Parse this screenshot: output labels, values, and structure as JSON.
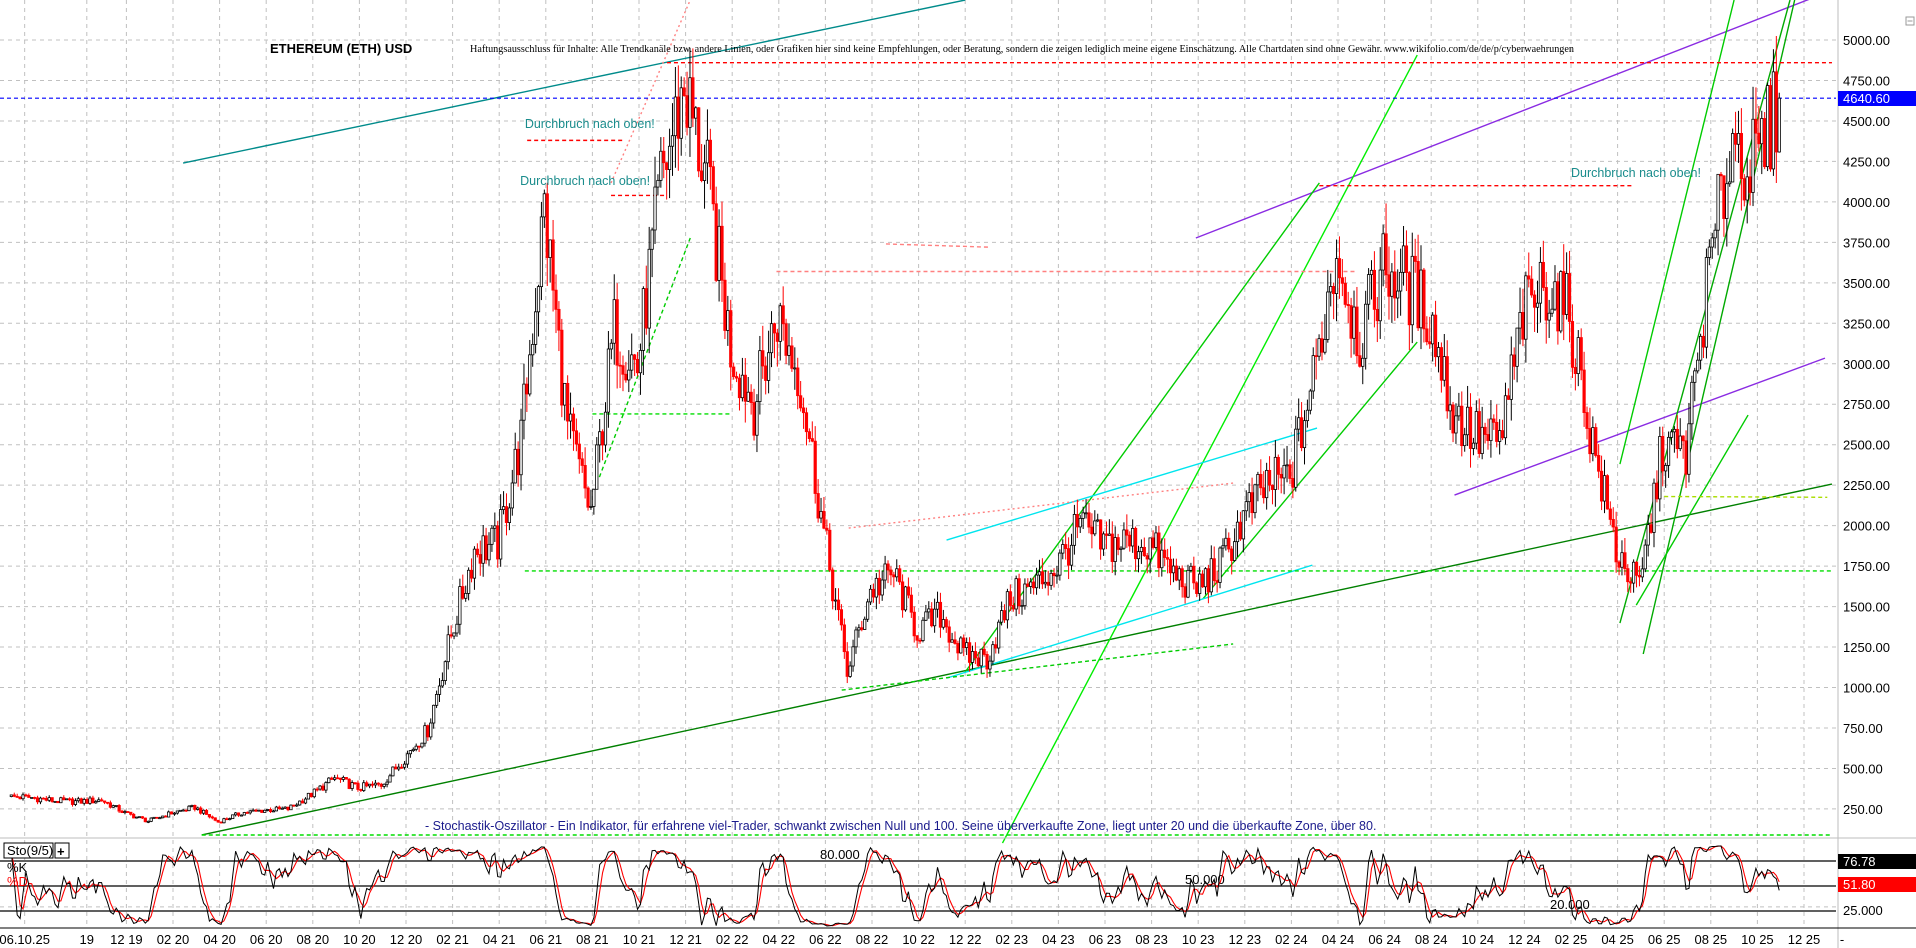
{
  "chart_data": {
    "type": "candlestick",
    "title": "ETHEREUM (ETH) USD",
    "disclaimer": "Haftungsausschluss für Inhalte: Alle Trendkanäle bzw. andere Linien, oder Grafiken hier sind keine Empfehlungen, oder Beratung, sondern die zeigen lediglich meine eigene Einschätzung. Alle Chartdaten sind ohne Gewähr.  www.wikifolio.com/de/de/p/cyberwaehrungen",
    "last_price": 4640.6,
    "last_price_label": "4640.60",
    "ylim": [
      80,
      5250
    ],
    "y_ticks": [
      "250.00",
      "500.00",
      "750.00",
      "1000.00",
      "1250.00",
      "1500.00",
      "1750.00",
      "2000.00",
      "2250.00",
      "2500.00",
      "2750.00",
      "3000.00",
      "3250.00",
      "3500.00",
      "3750.00",
      "4000.00",
      "4250.00",
      "4500.00",
      "4750.00",
      "5000.00"
    ],
    "x_ticks": [
      {
        "label": "06.10.25",
        "date": "2019-07-20"
      },
      {
        "label": "19",
        "date": "2019-10-10"
      },
      {
        "label": "12 19",
        "date": "2019-12-01"
      },
      {
        "label": "02 20",
        "date": "2020-02-01"
      },
      {
        "label": "04 20",
        "date": "2020-04-01"
      },
      {
        "label": "06 20",
        "date": "2020-06-01"
      },
      {
        "label": "08 20",
        "date": "2020-08-01"
      },
      {
        "label": "10 20",
        "date": "2020-10-01"
      },
      {
        "label": "12 20",
        "date": "2020-12-01"
      },
      {
        "label": "02 21",
        "date": "2021-02-01"
      },
      {
        "label": "04 21",
        "date": "2021-04-01"
      },
      {
        "label": "06 21",
        "date": "2021-06-01"
      },
      {
        "label": "08 21",
        "date": "2021-08-01"
      },
      {
        "label": "10 21",
        "date": "2021-10-01"
      },
      {
        "label": "12 21",
        "date": "2021-12-01"
      },
      {
        "label": "02 22",
        "date": "2022-02-01"
      },
      {
        "label": "04 22",
        "date": "2022-04-01"
      },
      {
        "label": "06 22",
        "date": "2022-06-01"
      },
      {
        "label": "08 22",
        "date": "2022-08-01"
      },
      {
        "label": "10 22",
        "date": "2022-10-01"
      },
      {
        "label": "12 22",
        "date": "2022-12-01"
      },
      {
        "label": "02 23",
        "date": "2023-02-01"
      },
      {
        "label": "04 23",
        "date": "2023-04-01"
      },
      {
        "label": "06 23",
        "date": "2023-06-01"
      },
      {
        "label": "08 23",
        "date": "2023-08-01"
      },
      {
        "label": "10 23",
        "date": "2023-10-01"
      },
      {
        "label": "12 23",
        "date": "2023-12-01"
      },
      {
        "label": "02 24",
        "date": "2024-02-01"
      },
      {
        "label": "04 24",
        "date": "2024-04-01"
      },
      {
        "label": "06 24",
        "date": "2024-06-01"
      },
      {
        "label": "08 24",
        "date": "2024-08-01"
      },
      {
        "label": "10 24",
        "date": "2024-10-01"
      },
      {
        "label": "12 24",
        "date": "2024-12-01"
      },
      {
        "label": "02 25",
        "date": "2025-02-01"
      },
      {
        "label": "04 25",
        "date": "2025-04-01"
      },
      {
        "label": "06 25",
        "date": "2025-06-01"
      },
      {
        "label": "08 25",
        "date": "2025-08-01"
      },
      {
        "label": "10 25",
        "date": "2025-10-01"
      },
      {
        "label": "12 25",
        "date": "2025-12-01"
      },
      {
        "label": "-",
        "date": "2026-01-20"
      }
    ],
    "grid": true,
    "monthly_close": {
      "start": "2019-07",
      "values": [
        320,
        300,
        295,
        305,
        225,
        175,
        225,
        260,
        170,
        225,
        243,
        250,
        340,
        440,
        380,
        400,
        565,
        740,
        1325,
        1850,
        1890,
        2530,
        3960,
        2600,
        2080,
        3210,
        2980,
        4115,
        4720,
        4115,
        3100,
        2750,
        3300,
        2900,
        1950,
        1100,
        1600,
        1700,
        1350,
        1450,
        1200,
        1180,
        1550,
        1620,
        1750,
        2000,
        1880,
        1900,
        1880,
        1700,
        1620,
        1750,
        2050,
        2250,
        2300,
        2900,
        3700,
        3150,
        3600,
        3500,
        3300,
        2700,
        2550,
        2500,
        3300,
        3500,
        3300,
        2500,
        1850,
        1600,
        2500,
        2450,
        3600,
        4400,
        4200,
        4640.6
      ]
    },
    "colors": {
      "bull": "#000000",
      "bear": "#ff0000",
      "last_price_line": "#0000ff"
    },
    "trendlines": [
      {
        "color": "#008b8b",
        "style": "solid",
        "from": [
          "2020-02-14",
          4240
        ],
        "to": [
          "2022-12-01",
          5247
        ]
      },
      {
        "color": "#008000",
        "style": "solid",
        "from": [
          "2020-03-08",
          89
        ],
        "to": [
          "2026-01-07",
          2257
        ]
      },
      {
        "color": "#8a2be2",
        "style": "solid",
        "from": [
          "2023-09-28",
          3777
        ],
        "to": [
          "2025-12-25",
          5284
        ]
      },
      {
        "color": "#8a2be2",
        "style": "solid",
        "from": [
          "2024-09-01",
          2189
        ],
        "to": [
          "2025-12-28",
          3035
        ]
      },
      {
        "color": "#00ee00",
        "style": "solid",
        "from": [
          "2023-01-19",
          39
        ],
        "to": [
          "2024-07-13",
          4907
        ]
      },
      {
        "color": "#00cc00",
        "style": "solid",
        "from": [
          "2022-12-01",
          1096
        ],
        "to": [
          "2024-03-07",
          4117
        ]
      },
      {
        "color": "#00cc00",
        "style": "solid",
        "from": [
          "2023-10-07",
          1547
        ],
        "to": [
          "2024-07-13",
          3134
        ]
      },
      {
        "color": "#00cc00",
        "style": "dashed",
        "from": [
          "2021-08-10",
          2300
        ],
        "to": [
          "2021-12-07",
          3777
        ]
      },
      {
        "color": "#00aa00",
        "style": "solid",
        "from": [
          "2025-04-04",
          1398
        ],
        "to": [
          "2025-11-13",
          5247
        ]
      },
      {
        "color": "#00aa00",
        "style": "solid",
        "from": [
          "2025-05-04",
          1207
        ],
        "to": [
          "2025-11-19",
          5247
        ]
      },
      {
        "color": "#00cc00",
        "style": "solid",
        "from": [
          "2025-04-04",
          2380
        ],
        "to": [
          "2025-09-01",
          5247
        ]
      },
      {
        "color": "#00cc00",
        "style": "solid",
        "from": [
          "2025-04-25",
          1509
        ],
        "to": [
          "2025-09-19",
          2683
        ]
      },
      {
        "color": "#00e5ee",
        "style": "solid",
        "from": [
          "2022-11-07",
          1911
        ],
        "to": [
          "2024-03-04",
          2603
        ]
      },
      {
        "color": "#00e5ee",
        "style": "solid",
        "from": [
          "2022-11-07",
          1058
        ],
        "to": [
          "2024-02-28",
          1756
        ]
      },
      {
        "color": "#00cc00",
        "style": "dashed",
        "from": [
          "2022-06-22",
          984
        ],
        "to": [
          "2023-11-16",
          1269
        ]
      },
      {
        "color": "#ff8080",
        "style": "dotted",
        "from": [
          "2022-07-01",
          1985
        ],
        "to": [
          "2023-11-16",
          2263
        ]
      },
      {
        "color": "#ff8080",
        "style": "dotted",
        "from": [
          "2021-08-25",
          4117
        ],
        "to": [
          "2021-12-07",
          5247
        ]
      },
      {
        "color": "#ff0000",
        "style": "dashed",
        "from": [
          "2021-11-07",
          4860
        ],
        "to": [
          "2026-01-07",
          4860
        ]
      },
      {
        "color": "#ff0000",
        "style": "dashed",
        "from": [
          "2024-03-07",
          4100
        ],
        "to": [
          "2025-04-19",
          4100
        ]
      },
      {
        "color": "#ff0000",
        "style": "dashed",
        "from": [
          "2021-05-07",
          4380
        ],
        "to": [
          "2021-09-10",
          4380
        ]
      },
      {
        "color": "#ff0000",
        "style": "dashed",
        "from": [
          "2021-08-25",
          4040
        ],
        "to": [
          "2021-11-07",
          4040
        ]
      },
      {
        "color": "#ff8080",
        "style": "dashed",
        "from": [
          "2022-03-28",
          3570
        ],
        "to": [
          "2024-04-25",
          3570
        ]
      },
      {
        "color": "#ff8080",
        "style": "dashed",
        "from": [
          "2022-08-19",
          3740
        ],
        "to": [
          "2023-01-04",
          3720
        ]
      },
      {
        "color": "#00dd00",
        "style": "dashed",
        "from": [
          "2021-05-04",
          1720
        ],
        "to": [
          "2026-01-07",
          1720
        ]
      },
      {
        "color": "#00dd00",
        "style": "dashed",
        "from": [
          "2021-08-01",
          2690
        ],
        "to": [
          "2022-02-01",
          2690
        ]
      },
      {
        "color": "#00dd00",
        "style": "dashed",
        "from": [
          "2020-03-08",
          89
        ],
        "to": [
          "2026-01-07",
          89
        ]
      },
      {
        "color": "#aadd00",
        "style": "dashed",
        "from": [
          "2025-06-01",
          2180
        ],
        "to": [
          "2026-01-01",
          2175
        ]
      }
    ],
    "annotations": [
      {
        "text": "Durchbruch nach oben!",
        "at": [
          "2021-05-04",
          4456
        ]
      },
      {
        "text": "Durchbruch nach oben!",
        "at": [
          "2021-04-28",
          4104
        ]
      },
      {
        "text": "Durchbruch nach oben!",
        "at": [
          "2025-02-01",
          4154
        ]
      }
    ],
    "indicator_note": "- Stochastik-Oszillator - Ein Indikator, für erfahrene viel-Trader, schwankt zwischen Null und 100. Seine überverkaufte Zone, liegt unter 20 und die überkaufte Zone, über 80.",
    "stochastic": {
      "label": "Sto(9/5)",
      "k_label": "%K",
      "d_label": "%D",
      "k_color": "#000000",
      "d_color": "#ff0000",
      "levels": [
        {
          "value": 80,
          "label": "80.000"
        },
        {
          "value": 50,
          "label": "50.000"
        },
        {
          "value": 20,
          "label": "20.000"
        }
      ],
      "axis_label": "25.000",
      "last_k": "76.78",
      "last_d": "51.80",
      "ylim": [
        0,
        100
      ]
    }
  },
  "controls": {
    "add_indicator": "+",
    "collapse": "−"
  }
}
